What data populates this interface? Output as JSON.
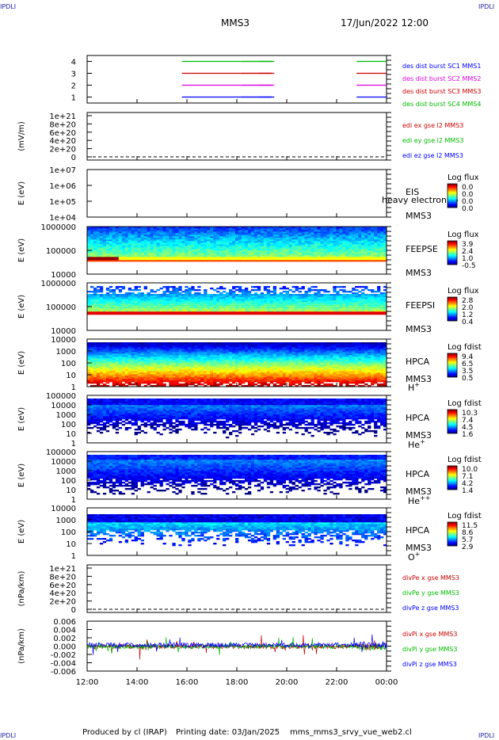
{
  "page": {
    "corner_tl": "IPDLI",
    "corner_tr": "IPDLI",
    "corner_bl": "IPDLI",
    "corner_br": "IPDLI",
    "title": "MMS3",
    "date": "17/Jun/2022 12:00",
    "footer_producer": "Produced by cl (IRAP)",
    "footer_date": "Printing date: 03/Jan/2025",
    "footer_file": "mms_mms3_srvy_vue_web2.cl"
  },
  "chart_data": {
    "type": "stacked-time-series",
    "x_ticks": [
      "12:00",
      "14:00",
      "16:00",
      "18:00",
      "20:00",
      "22:00",
      "00:00"
    ],
    "panels": [
      {
        "id": "burst",
        "kind": "markers",
        "ylabel": "",
        "yticks": [
          "4",
          "3",
          "2",
          "1"
        ],
        "ylim": [
          0.5,
          4.5
        ],
        "legend": [
          {
            "text": "des dist burst SC1 MMS1",
            "color": "#0000ff"
          },
          {
            "text": "des dist burst SC2 MMS2",
            "color": "#dd00dd"
          },
          {
            "text": "des dist burst SC3 MMS3",
            "color": "#cc0000"
          },
          {
            "text": "des dist burst SC4 MMS4",
            "color": "#00bb00"
          }
        ],
        "markers": [
          {
            "sc": 4,
            "t": 3.8,
            "len": 0.12,
            "color": "#00bb00"
          },
          {
            "sc": 4,
            "t": 6.2,
            "len": 0.04,
            "color": "#00bb00"
          },
          {
            "sc": 4,
            "t": 6.9,
            "len": 0.02,
            "color": "#00bb00"
          },
          {
            "sc": 4,
            "t": 10.8,
            "len": 0.04,
            "color": "#00bb00"
          },
          {
            "sc": 3,
            "t": 3.8,
            "len": 0.12,
            "color": "#cc0000"
          },
          {
            "sc": 3,
            "t": 6.2,
            "len": 0.04,
            "color": "#cc0000"
          },
          {
            "sc": 3,
            "t": 6.9,
            "len": 0.02,
            "color": "#cc0000"
          },
          {
            "sc": 3,
            "t": 10.8,
            "len": 0.04,
            "color": "#cc0000"
          },
          {
            "sc": 2,
            "t": 3.8,
            "len": 0.12,
            "color": "#dd00dd"
          },
          {
            "sc": 2,
            "t": 6.2,
            "len": 0.04,
            "color": "#dd00dd"
          },
          {
            "sc": 2,
            "t": 6.9,
            "len": 0.02,
            "color": "#dd00dd"
          },
          {
            "sc": 2,
            "t": 10.8,
            "len": 0.04,
            "color": "#dd00dd"
          },
          {
            "sc": 1,
            "t": 3.8,
            "len": 0.12,
            "color": "#0000ff"
          },
          {
            "sc": 1,
            "t": 6.2,
            "len": 0.04,
            "color": "#0000ff"
          },
          {
            "sc": 1,
            "t": 6.9,
            "len": 0.02,
            "color": "#0000ff"
          },
          {
            "sc": 1,
            "t": 10.8,
            "len": 0.04,
            "color": "#0000ff"
          }
        ]
      },
      {
        "id": "edi",
        "kind": "empty-line",
        "ylabel": "(mV/m)",
        "yticks": [
          "1e+21",
          "8e+20",
          "6e+20",
          "4e+20",
          "2e+20",
          "0"
        ],
        "legend": [
          {
            "text": "edi ex gse l2 MMS3",
            "color": "#cc0000"
          },
          {
            "text": "edi ey gse l2 MMS3",
            "color": "#00bb00"
          },
          {
            "text": "edi ez gse l2 MMS3",
            "color": "#0000ff"
          }
        ]
      },
      {
        "id": "eis",
        "kind": "empty-spec",
        "ylabel": "E (eV)",
        "yticks": [
          "1e+07",
          "1e+06",
          "1e+05",
          "1e+04"
        ],
        "side": [
          "EIS",
          "MMS3"
        ],
        "overlap_text": "heavy electron to",
        "cb_title": "Log flux",
        "cb_values": [
          "0.0",
          "0.0",
          "0.0",
          "0.0"
        ]
      },
      {
        "id": "feepse",
        "kind": "spectrogram",
        "ylabel": "E (eV)",
        "yticks": [
          "1000000",
          "100000",
          "10000"
        ],
        "side": [
          "FEEPSE",
          "MMS3"
        ],
        "cb_title": "Log flux",
        "cb_values": [
          "3.9",
          "2.4",
          "1.0",
          "-0.5"
        ]
      },
      {
        "id": "feepsi",
        "kind": "spectrogram",
        "ylabel": "E (eV)",
        "yticks": [
          "1000000",
          "100000",
          "10000"
        ],
        "side": [
          "FEEPSI",
          "MMS3"
        ],
        "cb_title": "Log flux",
        "cb_values": [
          "2.8",
          "2.0",
          "1.2",
          "0.4"
        ]
      },
      {
        "id": "hpca_h",
        "kind": "spectrogram",
        "ylabel": "E (eV)",
        "yticks": [
          "10000",
          "1000",
          "100",
          "10",
          "1"
        ],
        "side": [
          "HPCA",
          "MMS3"
        ],
        "species": "H",
        "sup": "+",
        "cb_title": "Log fdist",
        "cb_values": [
          "9.4",
          "6.5",
          "3.5",
          "0.5"
        ]
      },
      {
        "id": "hpca_he",
        "kind": "spectrogram",
        "ylabel": "E (eV)",
        "yticks": [
          "100000",
          "10000",
          "1000",
          "100",
          "10",
          "1"
        ],
        "side": [
          "HPCA",
          "MMS3"
        ],
        "species": "He",
        "sup": "+",
        "cb_title": "Log fdist",
        "cb_values": [
          "10.3",
          "7.4",
          "4.5",
          "1.6"
        ]
      },
      {
        "id": "hpca_hepp",
        "kind": "spectrogram",
        "ylabel": "E (eV)",
        "yticks": [
          "100000",
          "10000",
          "1000",
          "100",
          "10",
          "1"
        ],
        "side": [
          "HPCA",
          "MMS3"
        ],
        "species": "He",
        "sup": "++",
        "cb_title": "Log fdist",
        "cb_values": [
          "10.0",
          "7.1",
          "4.2",
          "1.4"
        ]
      },
      {
        "id": "hpca_o",
        "kind": "spectrogram",
        "ylabel": "E (eV)",
        "yticks": [
          "10000",
          "1000",
          "100",
          "10",
          "1"
        ],
        "side": [
          "HPCA",
          "MMS3"
        ],
        "species": "O",
        "sup": "+",
        "cb_title": "Log fdist",
        "cb_values": [
          "11.5",
          "8.6",
          "5.7",
          "2.9"
        ]
      },
      {
        "id": "divpe",
        "kind": "empty-line",
        "ylabel": "(nPa/km)",
        "yticks": [
          "1e+21",
          "8e+20",
          "6e+20",
          "4e+20",
          "2e+20",
          "0"
        ],
        "legend": [
          {
            "text": "divPe x gse MMS3",
            "color": "#cc0000"
          },
          {
            "text": "divPe y gse MMS3",
            "color": "#00bb00"
          },
          {
            "text": "divPe z gse MMS3",
            "color": "#0000ff"
          }
        ]
      },
      {
        "id": "divpi",
        "kind": "noise-line",
        "ylabel": "(nPa/km)",
        "yticks": [
          "0.006",
          "0.004",
          "0.002",
          "0.000",
          "-0.002",
          "-0.004",
          "-0.006"
        ],
        "ylim": [
          -0.0065,
          0.0065
        ],
        "legend": [
          {
            "text": "divPi x gse MMS3",
            "color": "#cc0000"
          },
          {
            "text": "divPi y gse MMS3",
            "color": "#00bb00"
          },
          {
            "text": "divPi z gse MMS3",
            "color": "#0000ff"
          }
        ]
      }
    ]
  }
}
